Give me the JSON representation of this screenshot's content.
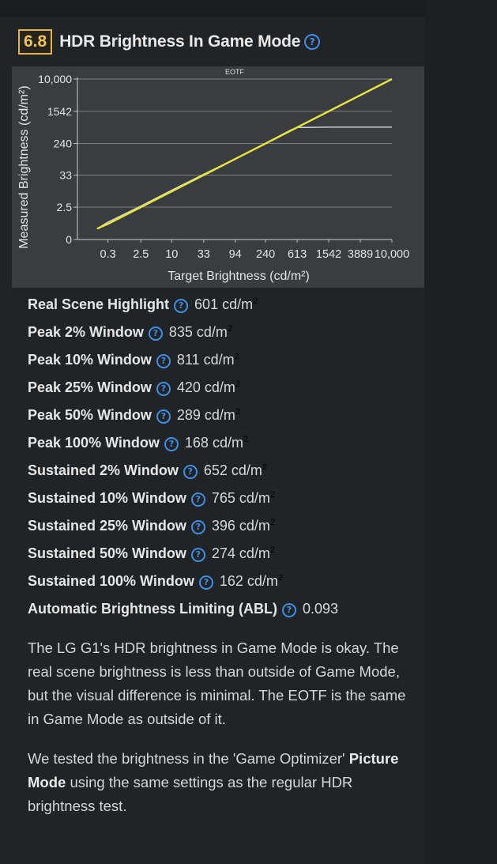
{
  "header": {
    "score": "6.8",
    "title": "HDR Brightness In Game Mode",
    "help_glyph": "?"
  },
  "chart_data": {
    "type": "line",
    "title": "EOTF",
    "xlabel": "Target Brightness (cd/m²)",
    "ylabel": "Measured Brightness (cd/m²)",
    "x_ticks": [
      "0.3",
      "2.5",
      "10",
      "33",
      "94",
      "240",
      "613",
      "1542",
      "3889",
      "10,000"
    ],
    "y_ticks": [
      "0",
      "2.5",
      "33",
      "240",
      "1542",
      "10,000"
    ],
    "x_scale": "pq",
    "y_scale": "pq",
    "grid": true,
    "series": [
      {
        "name": "",
        "color": "#d8d8d8",
        "points": [
          [
            0.1,
            0.12
          ],
          [
            0.3,
            0.4
          ],
          [
            2.5,
            2.8
          ],
          [
            10,
            11
          ],
          [
            33,
            35
          ],
          [
            94,
            95
          ],
          [
            240,
            245
          ],
          [
            500,
            520
          ],
          [
            613,
            610
          ],
          [
            1542,
            625
          ],
          [
            3889,
            625
          ],
          [
            10000,
            625
          ]
        ]
      },
      {
        "name": "",
        "color": "#e6e63c",
        "points": [
          [
            0.1,
            0.12
          ],
          [
            0.3,
            0.3
          ],
          [
            2.5,
            2.5
          ],
          [
            10,
            10
          ],
          [
            33,
            33
          ],
          [
            94,
            94
          ],
          [
            240,
            240
          ],
          [
            613,
            613
          ],
          [
            1542,
            1542
          ],
          [
            3889,
            3889
          ],
          [
            10000,
            10000
          ]
        ]
      }
    ]
  },
  "stats": [
    {
      "label": "Real Scene Highlight",
      "value": "601 cd/m",
      "sup": "2"
    },
    {
      "label": "Peak 2% Window",
      "value": "835 cd/m",
      "sup": "2"
    },
    {
      "label": "Peak 10% Window",
      "value": "811 cd/m",
      "sup": "2"
    },
    {
      "label": "Peak 25% Window",
      "value": "420 cd/m",
      "sup": "2"
    },
    {
      "label": "Peak 50% Window",
      "value": "289 cd/m",
      "sup": "2"
    },
    {
      "label": "Peak 100% Window",
      "value": "168 cd/m",
      "sup": "2"
    },
    {
      "label": "Sustained 2% Window",
      "value": "652 cd/m",
      "sup": "2"
    },
    {
      "label": "Sustained 10% Window",
      "value": "765 cd/m",
      "sup": "2"
    },
    {
      "label": "Sustained 25% Window",
      "value": "396 cd/m",
      "sup": "2"
    },
    {
      "label": "Sustained 50% Window",
      "value": "274 cd/m",
      "sup": "2"
    },
    {
      "label": "Sustained 100% Window",
      "value": "162 cd/m",
      "sup": "2"
    },
    {
      "label": "Automatic Brightness Limiting (ABL)",
      "value": "0.093",
      "sup": ""
    }
  ],
  "description": {
    "paragraph1": "The LG G1's HDR brightness in Game Mode is okay. The real scene brightness is less than outside of Game Mode, but the visual difference is minimal. The EOTF is the same in Game Mode as outside of it.",
    "paragraph2_before": "We tested the brightness in the 'Game Optimizer' ",
    "paragraph2_bold": "Picture Mode",
    "paragraph2_after": " using the same settings as the regular HDR brightness test."
  },
  "colors": {
    "score_border": "#e2b43f",
    "help_icon": "#3f8fe4",
    "panel_bg": "#212427",
    "chart_bg": "#3a3d40",
    "target_line": "#e6e63c",
    "measured_line": "#d8d8d8"
  },
  "icons": {
    "help": "help-circle-icon"
  }
}
